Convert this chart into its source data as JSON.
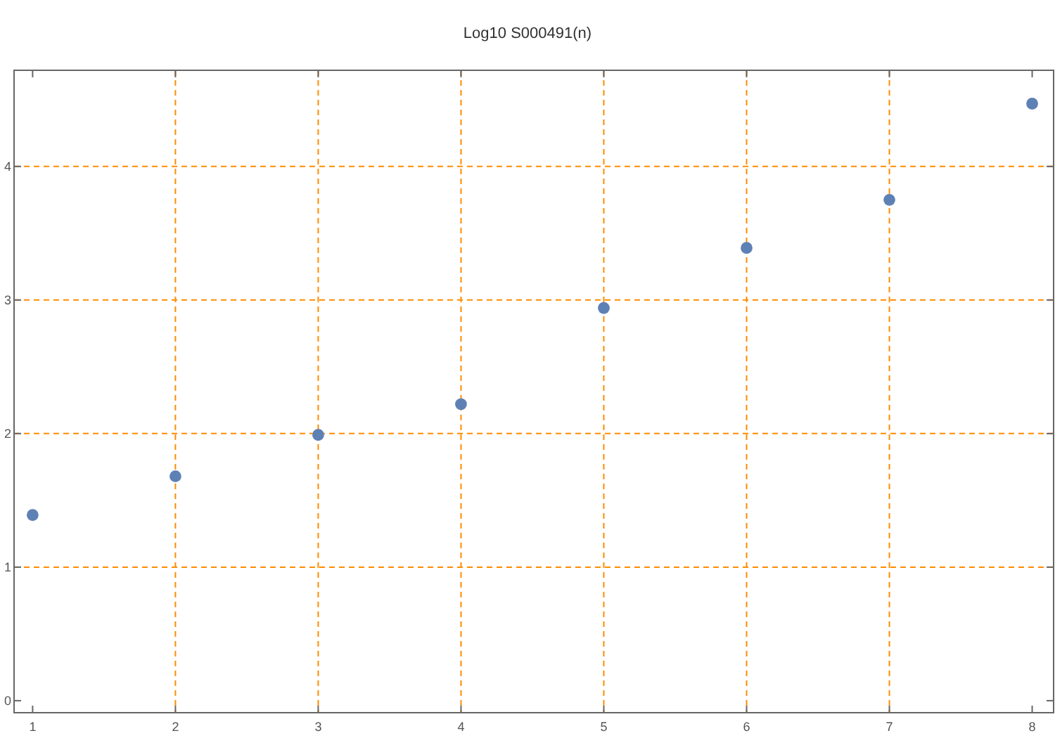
{
  "chart_data": {
    "type": "scatter",
    "title": "Log10 S000491(n)",
    "x": [
      1,
      2,
      3,
      4,
      5,
      6,
      7,
      8
    ],
    "series": [
      {
        "color": "#5e81b5",
        "values": [
          1.39,
          1.68,
          1.99,
          2.22,
          2.94,
          3.39,
          3.75,
          4.47
        ]
      }
    ],
    "xlim": [
      0.87,
      8.15
    ],
    "ylim": [
      -0.09,
      4.72
    ],
    "xticks": [
      1,
      2,
      3,
      4,
      5,
      6,
      7,
      8
    ],
    "yticks": [
      0,
      1,
      2,
      3,
      4
    ],
    "grid": true,
    "marker": "circle"
  }
}
